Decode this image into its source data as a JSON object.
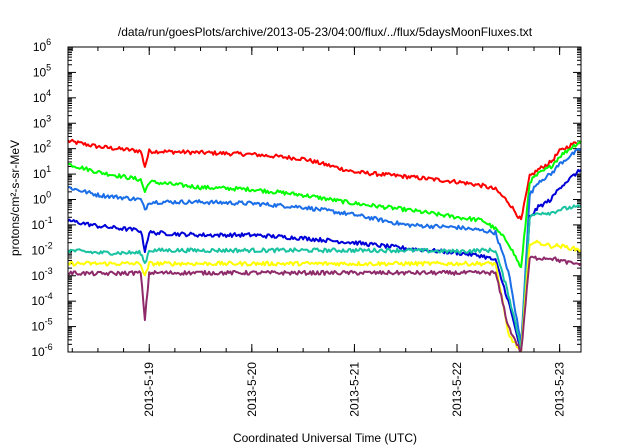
{
  "chart_data": {
    "type": "line",
    "title": "/data/run/goesPlots/archive/2013-05-23/04:00/flux/../flux/5daysMoonFluxes.txt",
    "xlabel": "Coordinated Universal Time (UTC)",
    "ylabel": "protons/cm²-s-sr-MeV",
    "yscale": "log",
    "ylim": [
      1e-06,
      1000000.0
    ],
    "xlim": [
      "2013-05-18 05:00",
      "2013-05-23 05:00"
    ],
    "grid": false,
    "legend": "none",
    "x_ticks": [
      "2013-5-19",
      "2013-5-20",
      "2013-5-21",
      "2013-5-22",
      "2013-5-23"
    ],
    "y_ticks": [
      {
        "base": "10",
        "exp": "-6"
      },
      {
        "base": "10",
        "exp": "-5"
      },
      {
        "base": "10",
        "exp": "-4"
      },
      {
        "base": "10",
        "exp": "-3"
      },
      {
        "base": "10",
        "exp": "-2"
      },
      {
        "base": "10",
        "exp": "-1"
      },
      {
        "base": "10",
        "exp": "0"
      },
      {
        "base": "10",
        "exp": "1"
      },
      {
        "base": "10",
        "exp": "2"
      },
      {
        "base": "10",
        "exp": "3"
      },
      {
        "base": "10",
        "exp": "4"
      },
      {
        "base": "10",
        "exp": "5"
      },
      {
        "base": "10",
        "exp": "6"
      }
    ],
    "x": [
      "2013-05-18 05:00",
      "2013-05-18 12:00",
      "2013-05-18 22:00",
      "2013-05-18 23:00",
      "2013-05-19 00:00",
      "2013-05-19 12:00",
      "2013-05-20 00:00",
      "2013-05-20 12:00",
      "2013-05-21 00:00",
      "2013-05-21 12:00",
      "2013-05-22 00:00",
      "2013-05-22 06:00",
      "2013-05-22 09:00",
      "2013-05-22 12:00",
      "2013-05-22 15:00",
      "2013-05-22 17:00",
      "2013-05-22 19:00",
      "2013-05-22 22:00",
      "2013-05-23 00:00",
      "2013-05-23 03:00",
      "2013-05-23 05:00"
    ],
    "series": [
      {
        "color": "#ff0000",
        "values": [
          200,
          120,
          80,
          20,
          80,
          70,
          60,
          40,
          12,
          8,
          5,
          3.5,
          2.5,
          0.8,
          0.15,
          8,
          15,
          30,
          80,
          150,
          200
        ]
      },
      {
        "color": "#00ff00",
        "values": [
          25,
          12,
          6,
          2,
          5,
          3,
          2.5,
          1.5,
          0.7,
          0.4,
          0.2,
          0.15,
          0.07,
          0.02,
          0.002,
          5,
          10,
          20,
          50,
          120,
          200
        ]
      },
      {
        "color": "#1a6ee8",
        "values": [
          3,
          1.5,
          1,
          0.4,
          0.8,
          0.8,
          0.7,
          0.5,
          0.25,
          0.1,
          0.08,
          0.06,
          0.05,
          0.0015,
          2e-06,
          1.5,
          5,
          10,
          25,
          60,
          100
        ]
      },
      {
        "color": "#0000d8",
        "values": [
          0.15,
          0.09,
          0.06,
          0.01,
          0.05,
          0.04,
          0.04,
          0.03,
          0.02,
          0.012,
          0.008,
          0.006,
          0.004,
          0.0001,
          1e-06,
          0.2,
          0.5,
          1,
          3,
          8,
          15
        ]
      },
      {
        "color": "#19c2a0",
        "values": [
          0.01,
          0.008,
          0.008,
          0.003,
          0.01,
          0.01,
          0.01,
          0.01,
          0.01,
          0.01,
          0.009,
          0.01,
          0.01,
          0.0002,
          1.5e-06,
          0.2,
          0.3,
          0.3,
          0.4,
          0.5,
          0.5
        ]
      },
      {
        "color": "#ffff00",
        "values": [
          0.003,
          0.003,
          0.003,
          0.0009,
          0.003,
          0.003,
          0.003,
          0.003,
          0.003,
          0.003,
          0.003,
          0.003,
          0.003,
          5e-06,
          1e-06,
          0.02,
          0.02,
          0.015,
          0.015,
          0.012,
          0.01
        ]
      },
      {
        "color": "#8e2a6a",
        "values": [
          0.0013,
          0.0012,
          0.0013,
          2e-05,
          0.0013,
          0.0013,
          0.0013,
          0.0013,
          0.0013,
          0.0013,
          0.0013,
          0.0013,
          0.0013,
          1e-05,
          1e-06,
          0.005,
          0.005,
          0.005,
          0.004,
          0.003,
          0.003
        ]
      }
    ]
  }
}
